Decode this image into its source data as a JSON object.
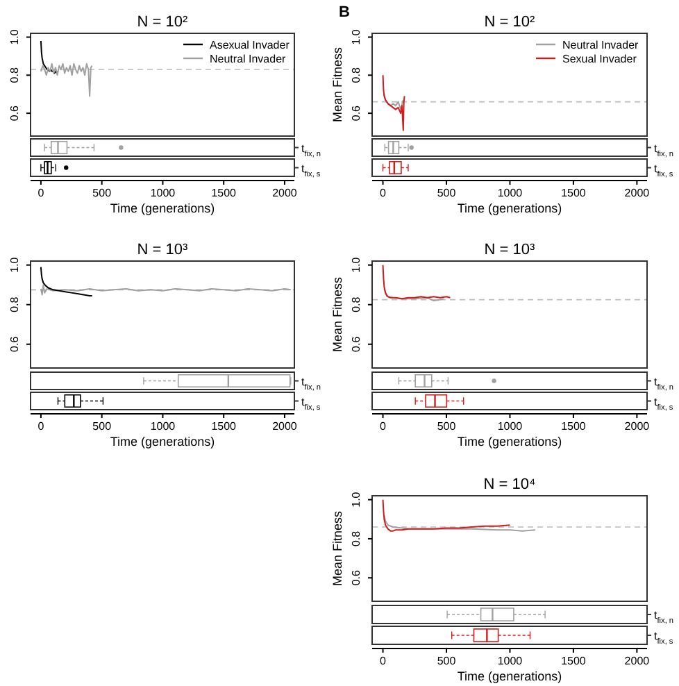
{
  "chart_data": [
    {
      "type": "line",
      "title": "N = 10²",
      "xlim": [
        -85,
        2080
      ],
      "ylim": [
        0.48,
        1.02
      ],
      "yticks": [
        {
          "value": 0.6,
          "label": "0.6"
        },
        {
          "value": 0.8,
          "label": "0.8"
        },
        {
          "value": 1.0,
          "label": "1.0"
        }
      ],
      "tick_labels": "y",
      "legend": "top right",
      "ref_lines": [
        {
          "axis": "y",
          "value": 0.83,
          "color": "#bbbbbb",
          "line_style": "dashed"
        }
      ],
      "series": [
        {
          "name": "Asexual Invader",
          "color": "#000000",
          "x": [
            0,
            5,
            10,
            20,
            30,
            40,
            50,
            60,
            70,
            80,
            90,
            100,
            110,
            120,
            130,
            140
          ],
          "values": [
            0.98,
            0.92,
            0.89,
            0.86,
            0.85,
            0.84,
            0.83,
            0.83,
            0.82,
            0.83,
            0.82,
            0.82,
            0.81,
            0.82,
            0.81,
            0.82
          ]
        },
        {
          "name": "Neutral Invader",
          "color": "#a0a0a0",
          "x": [
            0,
            15,
            30,
            45,
            60,
            75,
            90,
            105,
            120,
            135,
            150,
            165,
            180,
            195,
            210,
            225,
            240,
            255,
            270,
            285,
            300,
            315,
            330,
            345,
            360,
            375,
            390,
            400,
            410,
            420
          ],
          "values": [
            0.82,
            0.85,
            0.83,
            0.8,
            0.84,
            0.82,
            0.86,
            0.81,
            0.84,
            0.8,
            0.85,
            0.83,
            0.86,
            0.81,
            0.84,
            0.82,
            0.85,
            0.8,
            0.86,
            0.83,
            0.81,
            0.85,
            0.82,
            0.84,
            0.8,
            0.86,
            0.83,
            0.69,
            0.84,
            0.85
          ]
        }
      ]
    },
    {
      "type": "box",
      "orientation": "horizontal",
      "categories": [
        "t$_{fix, n}$",
        "t$_{fix, s}$"
      ],
      "colors": [
        "#a0a0a0",
        "#000000"
      ],
      "xlim": [
        -85,
        2080
      ],
      "xticks": [
        0,
        500,
        1000,
        1500,
        2000
      ],
      "xlabel": "Time (generations)",
      "boxes": [
        {
          "low": 30,
          "q1": 85,
          "median": 140,
          "q3": 214,
          "high": 436,
          "outliers": [
            658
          ]
        },
        {
          "low": 0,
          "q1": 30,
          "median": 55,
          "q3": 85,
          "high": 122,
          "outliers": [
            207
          ]
        }
      ]
    },
    {
      "type": "line",
      "title": "N = 10²",
      "ylabel": "Mean Fitness",
      "annotations": [
        "B"
      ],
      "xlim": [
        -85,
        2080
      ],
      "ylim": [
        0.48,
        1.02
      ],
      "yticks": [
        {
          "value": 0.6,
          "label": "0.6"
        },
        {
          "value": 0.8,
          "label": "0.8"
        },
        {
          "value": 1.0,
          "label": "1.0"
        }
      ],
      "tick_labels": "y",
      "legend": "top right",
      "ref_lines": [
        {
          "axis": "y",
          "value": 0.66,
          "color": "#bbbbbb",
          "line_style": "dashed"
        }
      ],
      "series": [
        {
          "name": "Neutral Invader",
          "color": "#a0a0a0",
          "x": [
            10,
            20,
            40,
            60,
            80,
            100,
            120,
            140,
            160
          ],
          "values": [
            0.7,
            0.67,
            0.65,
            0.64,
            0.65,
            0.64,
            0.66,
            0.62,
            0.67
          ]
        },
        {
          "name": "Sexual Invader",
          "color": "#d11c1c",
          "x": [
            0,
            5,
            10,
            20,
            30,
            40,
            60,
            80,
            100,
            120,
            140,
            150,
            160,
            165,
            170
          ],
          "values": [
            0.8,
            0.72,
            0.69,
            0.67,
            0.66,
            0.65,
            0.64,
            0.63,
            0.62,
            0.63,
            0.6,
            0.64,
            0.51,
            0.66,
            0.69
          ]
        }
      ]
    },
    {
      "type": "box",
      "orientation": "horizontal",
      "categories": [
        "t$_{fix, n}$",
        "t$_{fix, s}$"
      ],
      "colors": [
        "#a0a0a0",
        "#d11c1c"
      ],
      "xlim": [
        -85,
        2080
      ],
      "xticks": [
        0,
        500,
        1000,
        1500,
        2000
      ],
      "xlabel": "Time (generations)",
      "boxes": [
        {
          "low": 15,
          "q1": 44,
          "median": 81,
          "q3": 125,
          "high": 199,
          "outliers": [
            225
          ]
        },
        {
          "low": 0,
          "q1": 52,
          "median": 89,
          "q3": 144,
          "high": 199
        }
      ]
    },
    {
      "type": "line",
      "title": "N = 10³",
      "xlim": [
        -85,
        2080
      ],
      "ylim": [
        0.48,
        1.02
      ],
      "yticks": [
        {
          "value": 0.6,
          "label": "0.6"
        },
        {
          "value": 0.8,
          "label": "0.8"
        },
        {
          "value": 1.0,
          "label": "1.0"
        }
      ],
      "tick_labels": "y",
      "ref_lines": [
        {
          "axis": "y",
          "value": 0.875,
          "color": "#bbbbbb",
          "line_style": "dashed"
        }
      ],
      "series": [
        {
          "color": "#a0a0a0",
          "x": [
            0,
            10,
            20,
            30,
            50,
            100,
            200,
            300,
            400,
            500,
            600,
            700,
            800,
            900,
            1000,
            1100,
            1200,
            1300,
            1400,
            1500,
            1600,
            1700,
            1800,
            1900,
            2000,
            2050
          ],
          "values": [
            0.88,
            0.85,
            0.9,
            0.86,
            0.88,
            0.87,
            0.875,
            0.87,
            0.88,
            0.87,
            0.875,
            0.88,
            0.87,
            0.875,
            0.87,
            0.88,
            0.875,
            0.87,
            0.88,
            0.875,
            0.87,
            0.88,
            0.875,
            0.87,
            0.88,
            0.875
          ]
        },
        {
          "color": "#000000",
          "x": [
            0,
            5,
            10,
            20,
            40,
            60,
            100,
            150,
            200,
            250,
            300,
            350,
            400,
            420
          ],
          "values": [
            0.99,
            0.95,
            0.93,
            0.91,
            0.895,
            0.885,
            0.875,
            0.87,
            0.865,
            0.86,
            0.855,
            0.85,
            0.845,
            0.845
          ]
        }
      ]
    },
    {
      "type": "box",
      "orientation": "horizontal",
      "categories": [
        "t$_{fix, n}$",
        "t$_{fix, s}$"
      ],
      "colors": [
        "#a0a0a0",
        "#000000"
      ],
      "xlim": [
        -85,
        2080
      ],
      "xticks": [
        0,
        500,
        1000,
        1500,
        2000
      ],
      "xlabel": "Time (generations)",
      "boxes": [
        {
          "low": 843,
          "q1": 1127,
          "median": 1538,
          "q3": 2044,
          "high": 2050
        },
        {
          "low": 140,
          "q1": 196,
          "median": 270,
          "q3": 325,
          "high": 510
        }
      ]
    },
    {
      "type": "line",
      "title": "N = 10³",
      "ylabel": "Mean Fitness",
      "xlim": [
        -85,
        2080
      ],
      "ylim": [
        0.48,
        1.02
      ],
      "yticks": [
        {
          "value": 0.6,
          "label": "0.6"
        },
        {
          "value": 0.8,
          "label": "0.8"
        },
        {
          "value": 1.0,
          "label": "1.0"
        }
      ],
      "tick_labels": "y",
      "ref_lines": [
        {
          "axis": "y",
          "value": 0.825,
          "color": "#bbbbbb",
          "line_style": "dashed"
        }
      ],
      "series": [
        {
          "color": "#a0a0a0",
          "x": [
            10,
            20,
            40,
            80,
            150,
            250,
            350,
            400,
            450,
            480
          ],
          "values": [
            0.88,
            0.86,
            0.84,
            0.835,
            0.83,
            0.83,
            0.835,
            0.82,
            0.825,
            0.83
          ]
        },
        {
          "color": "#d11c1c",
          "x": [
            0,
            5,
            10,
            20,
            30,
            40,
            60,
            100,
            150,
            200,
            250,
            300,
            350,
            400,
            450,
            500,
            530
          ],
          "values": [
            1.0,
            0.93,
            0.89,
            0.86,
            0.845,
            0.84,
            0.835,
            0.835,
            0.83,
            0.835,
            0.835,
            0.84,
            0.835,
            0.84,
            0.835,
            0.84,
            0.835
          ]
        }
      ]
    },
    {
      "type": "box",
      "orientation": "horizontal",
      "categories": [
        "t$_{fix, n}$",
        "t$_{fix, s}$"
      ],
      "colors": [
        "#a0a0a0",
        "#d11c1c"
      ],
      "xlim": [
        -85,
        2080
      ],
      "xticks": [
        0,
        500,
        1000,
        1500,
        2000
      ],
      "xlabel": "Time (generations)",
      "boxes": [
        {
          "low": 125,
          "q1": 255,
          "median": 328,
          "q3": 384,
          "high": 513,
          "outliers": [
            875
          ]
        },
        {
          "low": 255,
          "q1": 336,
          "median": 410,
          "q3": 502,
          "high": 635
        }
      ]
    },
    {
      "type": "line",
      "title": "N = 10⁴",
      "ylabel": "Mean Fitness",
      "xlim": [
        -85,
        2080
      ],
      "ylim": [
        0.48,
        1.02
      ],
      "yticks": [
        {
          "value": 0.6,
          "label": "0.6"
        },
        {
          "value": 0.8,
          "label": "0.8"
        },
        {
          "value": 1.0,
          "label": "1.0"
        }
      ],
      "tick_labels": "y",
      "ref_lines": [
        {
          "axis": "y",
          "value": 0.86,
          "color": "#bbbbbb",
          "line_style": "dashed"
        }
      ],
      "series": [
        {
          "color": "#a0a0a0",
          "x": [
            10,
            20,
            40,
            80,
            150,
            200,
            300,
            500,
            700,
            900,
            1000,
            1100,
            1200
          ],
          "values": [
            0.92,
            0.89,
            0.87,
            0.86,
            0.855,
            0.85,
            0.85,
            0.85,
            0.85,
            0.845,
            0.845,
            0.84,
            0.845
          ]
        },
        {
          "color": "#d11c1c",
          "x": [
            0,
            5,
            10,
            20,
            40,
            60,
            80,
            100,
            150,
            200,
            300,
            400,
            500,
            600,
            700,
            800,
            900,
            1000
          ],
          "values": [
            1.0,
            0.94,
            0.9,
            0.87,
            0.85,
            0.84,
            0.84,
            0.845,
            0.845,
            0.85,
            0.85,
            0.85,
            0.855,
            0.855,
            0.86,
            0.865,
            0.865,
            0.87
          ]
        }
      ]
    },
    {
      "type": "box",
      "orientation": "horizontal",
      "categories": [
        "t$_{fix, n}$",
        "t$_{fix, s}$"
      ],
      "colors": [
        "#a0a0a0",
        "#d11c1c"
      ],
      "xlim": [
        -85,
        2080
      ],
      "xticks": [
        0,
        500,
        1000,
        1500,
        2000
      ],
      "xlabel": "Time (generations)",
      "boxes": [
        {
          "low": 506,
          "q1": 771,
          "median": 863,
          "q3": 1030,
          "high": 1277
        },
        {
          "low": 542,
          "q1": 716,
          "median": 819,
          "q3": 908,
          "high": 1159
        }
      ]
    }
  ]
}
